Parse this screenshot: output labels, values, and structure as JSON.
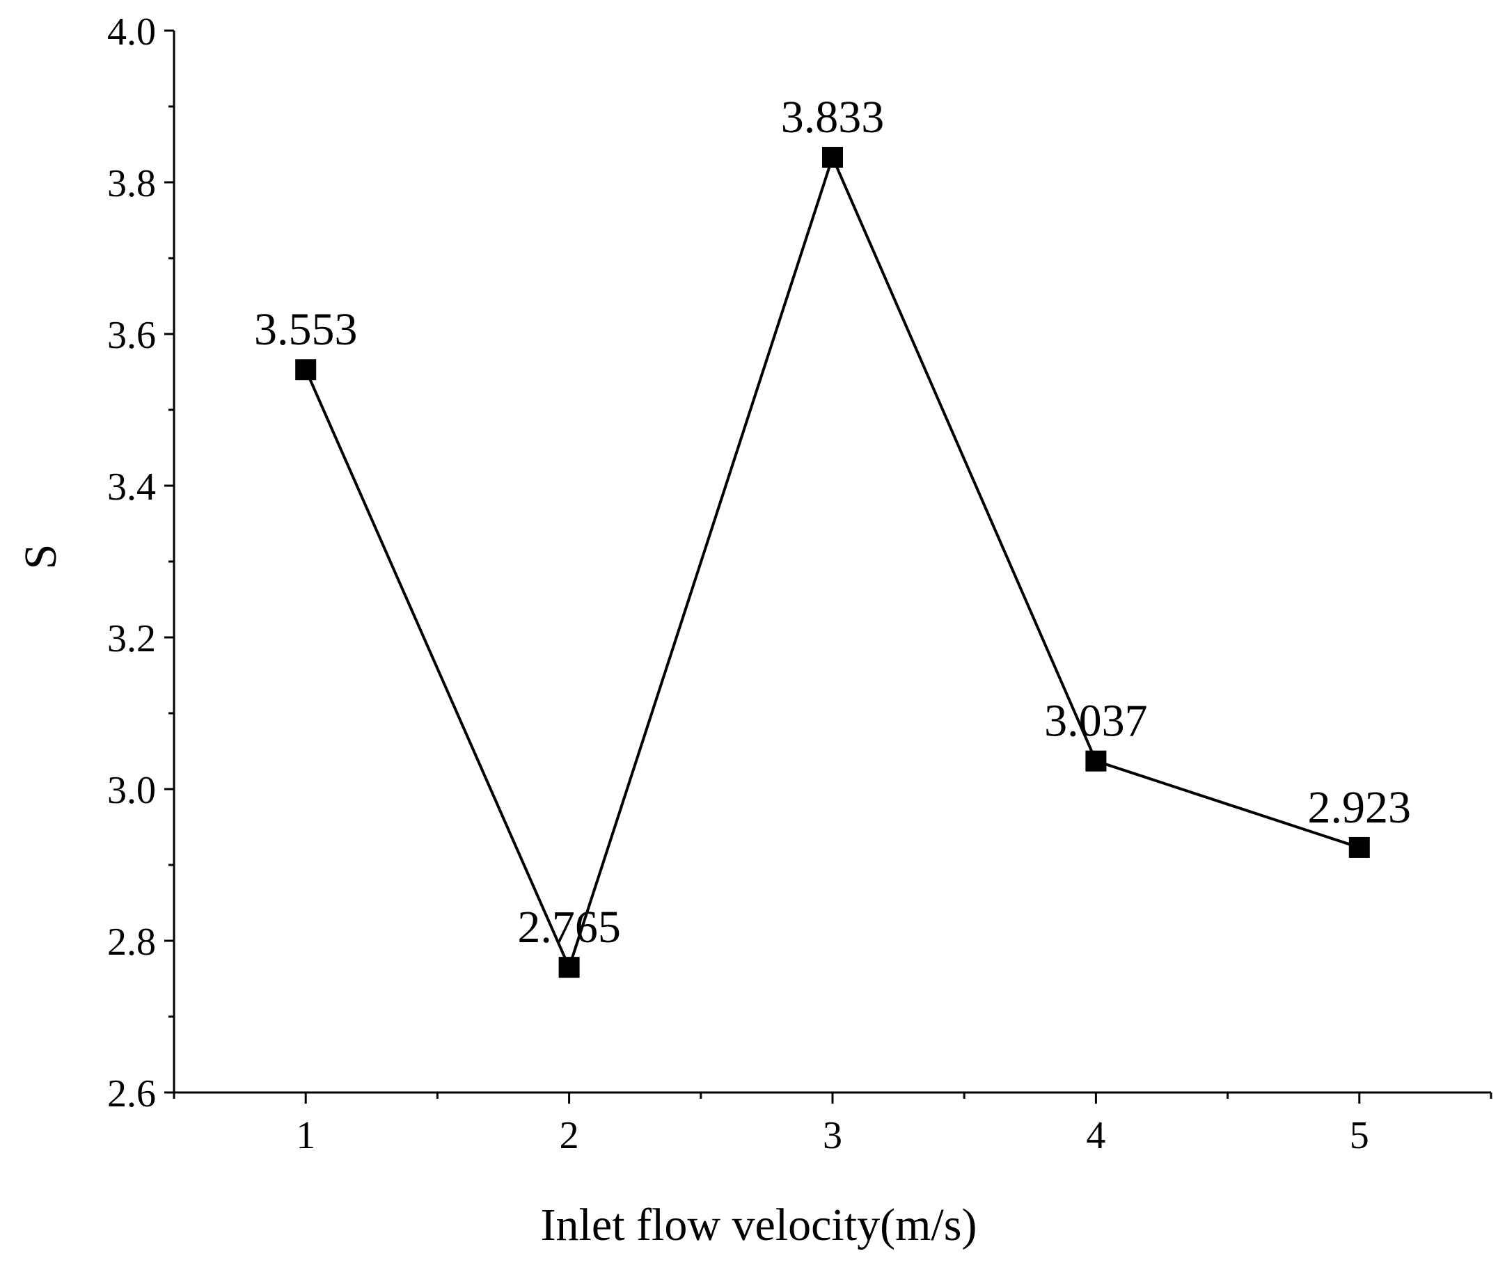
{
  "chart_data": {
    "type": "line",
    "title": "",
    "xlabel": "Inlet flow velocity(m/s)",
    "ylabel": "S",
    "x": [
      1,
      2,
      3,
      4,
      5
    ],
    "series": [
      {
        "name": "S",
        "values": [
          3.553,
          2.765,
          3.833,
          3.037,
          2.923
        ],
        "data_labels": [
          "3.553",
          "2.765",
          "3.833",
          "3.037",
          "2.923"
        ],
        "marker": "square",
        "color": "#000000"
      }
    ],
    "xlim": [
      0.5,
      5.5
    ],
    "ylim": [
      2.6,
      4.0
    ],
    "xticks": [
      1,
      2,
      3,
      4,
      5
    ],
    "xtick_labels": [
      "1",
      "2",
      "3",
      "4",
      "5"
    ],
    "yticks": [
      2.6,
      2.8,
      3.0,
      3.2,
      3.4,
      3.6,
      3.8,
      4.0
    ],
    "ytick_labels": [
      "2.6",
      "2.8",
      "3.0",
      "3.2",
      "3.4",
      "3.6",
      "3.8",
      "4.0"
    ],
    "grid": false,
    "legend": "none"
  }
}
